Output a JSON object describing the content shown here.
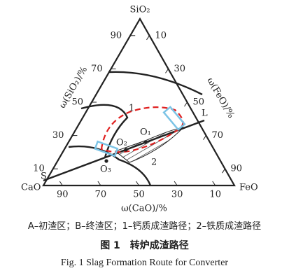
{
  "figure": {
    "vertices": {
      "top": "SiO₂",
      "left": "CaO",
      "right": "FeO"
    },
    "axis_labels": {
      "left": "ω(SiO₂)/%",
      "right": "ω(FeO)/%",
      "bottom": "ω(CaO)/%"
    },
    "left_ticks": [
      90,
      70,
      50,
      30,
      10
    ],
    "right_ticks": [
      10,
      30,
      50,
      70,
      90
    ],
    "bottom_ticks": [
      90,
      70,
      50,
      30,
      10
    ],
    "points": {
      "S": "S",
      "L": "L",
      "O1": "O₁",
      "O2": "O₂",
      "O3": "O₃",
      "route1": "1",
      "route2": "2"
    }
  },
  "captions": {
    "legend": "A–初渣区；B–终渣区；1–钙质成渣路径；2–铁质成渣路径",
    "title_cn": "图 1　转炉成渣路径",
    "title_en": "Fig. 1  Slag Formation Route for Converter"
  }
}
